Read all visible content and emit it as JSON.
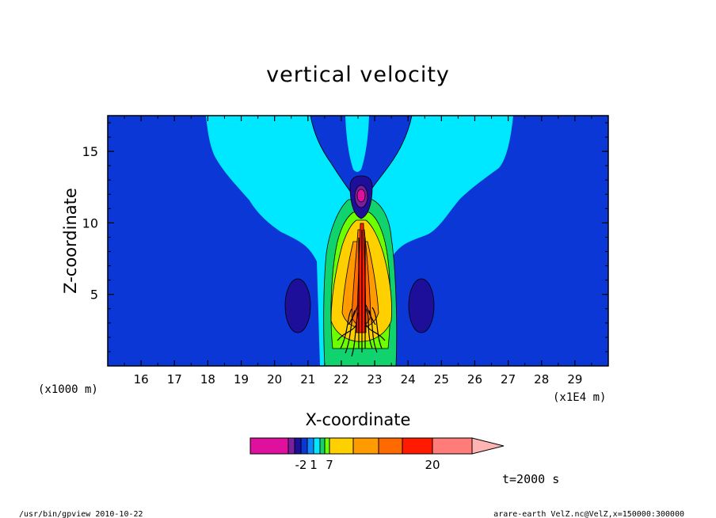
{
  "chart_data": {
    "type": "contour",
    "title": "vertical velocity",
    "xlabel": "X-coordinate",
    "ylabel": "Z-coordinate",
    "x_unit": "(x1E4 m)",
    "y_unit": "(x1000 m)",
    "xlim": [
      15.0,
      30.0
    ],
    "ylim": [
      0.0,
      17.5
    ],
    "x_ticks": [
      "16",
      "17",
      "18",
      "19",
      "20",
      "21",
      "22",
      "23",
      "24",
      "25",
      "26",
      "27",
      "28",
      "29"
    ],
    "y_ticks": [
      "5",
      "10",
      "15"
    ],
    "colorbar": {
      "levels": [
        -5,
        -3,
        -2,
        -1,
        0,
        1,
        2,
        3,
        7,
        10,
        13,
        16,
        20,
        24
      ],
      "labels": [
        "-2",
        "1",
        "7",
        "20"
      ],
      "colors": [
        "#e0109e",
        "#7b1fa2",
        "#1e0f9a",
        "#0a37d6",
        "#0b8aff",
        "#00e8ff",
        "#11d36e",
        "#6bff00",
        "#ffd000",
        "#ff9b00",
        "#ff6a00",
        "#ff1a00",
        "#ff7c78"
      ],
      "extend_color": "#ffb4b4"
    },
    "annotation": "t=2000 s",
    "grid": false,
    "legend": "colorbar-bottom"
  },
  "footer": {
    "left": "/usr/bin/gpview   2010-10-22",
    "right": "arare-earth_VelZ.nc@VelZ,x=150000:300000"
  }
}
